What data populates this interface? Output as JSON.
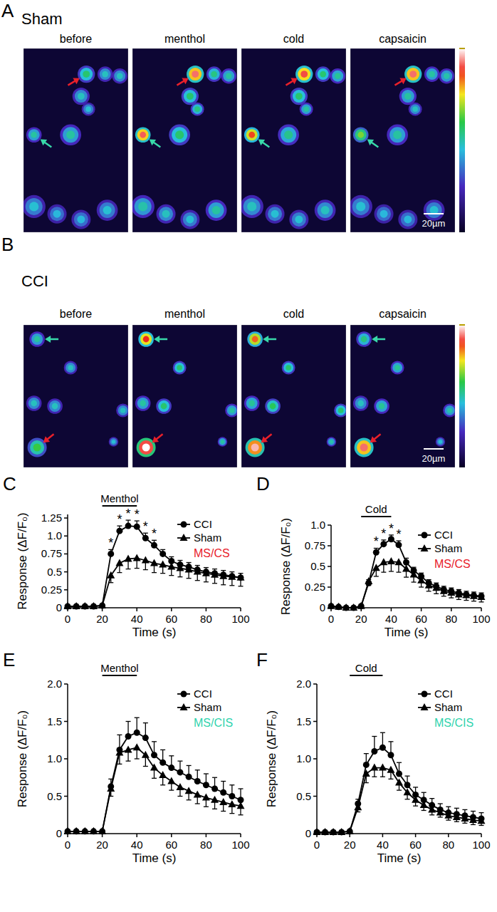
{
  "figure_panels": [
    {
      "panel_label": "A",
      "condition": "Sham",
      "frames": [
        "before",
        "menthol",
        "cold",
        "capsaicin"
      ],
      "scale_bar": "20µm"
    },
    {
      "panel_label": "B",
      "condition": "CCI",
      "frames": [
        "before",
        "menthol",
        "cold",
        "capsaicin"
      ],
      "scale_bar": "20µm"
    }
  ],
  "chart_data": [
    {
      "type": "line",
      "panel_label": "C",
      "subtitle": "MS/CS",
      "xlabel": "Time (s)",
      "ylabel": "Response (ΔF/F₀)",
      "x": [
        0,
        5,
        10,
        15,
        20,
        25,
        30,
        35,
        40,
        45,
        50,
        55,
        60,
        65,
        70,
        75,
        80,
        85,
        90,
        95,
        100
      ],
      "xlim": [
        0,
        100
      ],
      "xticks": [
        0,
        20,
        40,
        60,
        80,
        100
      ],
      "ylim": [
        0,
        1.3
      ],
      "yticks": [
        0,
        0.25,
        0.5,
        0.75,
        {
          "value": 1,
          "label": "1.0"
        },
        1.25
      ],
      "legend": "top-right",
      "series": [
        {
          "name": "CCI",
          "color": "#000000",
          "marker": "circle",
          "values": [
            0.02,
            0.02,
            0.02,
            0.02,
            0.03,
            0.75,
            1.07,
            1.14,
            1.13,
            0.97,
            0.87,
            0.75,
            0.65,
            0.6,
            0.57,
            0.53,
            0.5,
            0.48,
            0.46,
            0.44,
            0.42
          ],
          "errors": [
            0.01,
            0.01,
            0.01,
            0.01,
            0.01,
            0.06,
            0.07,
            0.08,
            0.08,
            0.07,
            0.07,
            0.06,
            0.06,
            0.06,
            0.06,
            0.06,
            0.06,
            0.06,
            0.06,
            0.06,
            0.06
          ]
        },
        {
          "name": "Sham",
          "color": "#000000",
          "marker": "triangle",
          "values": [
            0.02,
            0.02,
            0.02,
            0.02,
            0.03,
            0.45,
            0.62,
            0.68,
            0.69,
            0.66,
            0.62,
            0.6,
            0.57,
            0.55,
            0.53,
            0.5,
            0.48,
            0.46,
            0.44,
            0.43,
            0.42
          ],
          "errors": [
            0.01,
            0.01,
            0.01,
            0.01,
            0.01,
            0.1,
            0.13,
            0.14,
            0.14,
            0.13,
            0.13,
            0.12,
            0.12,
            0.12,
            0.12,
            0.12,
            0.12,
            0.12,
            0.12,
            0.12,
            0.12
          ]
        }
      ],
      "annotations": [
        {
          "text": "Menthol",
          "x": [
            20,
            40
          ]
        },
        {
          "text": "*",
          "x": 25
        },
        {
          "text": "*",
          "x": 30
        },
        {
          "text": "*",
          "x": 35
        },
        {
          "text": "*",
          "x": 40
        },
        {
          "text": "*",
          "x": 45
        },
        {
          "text": "*",
          "x": 50
        }
      ]
    },
    {
      "type": "line",
      "panel_label": "D",
      "subtitle": "MS/CS",
      "xlabel": "Time (s)",
      "ylabel": "Response (ΔF/F₀)",
      "x": [
        0,
        5,
        10,
        15,
        20,
        25,
        30,
        35,
        40,
        45,
        50,
        55,
        60,
        65,
        70,
        75,
        80,
        85,
        90,
        95,
        100
      ],
      "xlim": [
        0,
        100
      ],
      "xticks": [
        0,
        20,
        40,
        60,
        80,
        100
      ],
      "ylim": [
        0,
        1
      ],
      "yticks": [
        0,
        0.25,
        0.5,
        0.75,
        {
          "value": 1,
          "label": "1.0"
        }
      ],
      "legend": "top-right",
      "series": [
        {
          "name": "CCI",
          "color": "#000000",
          "marker": "circle",
          "values": [
            0.02,
            0.01,
            0.0,
            0.0,
            0.02,
            0.3,
            0.67,
            0.77,
            0.83,
            0.76,
            0.55,
            0.45,
            0.38,
            0.3,
            0.26,
            0.22,
            0.2,
            0.18,
            0.16,
            0.15,
            0.14
          ],
          "errors": [
            0.01,
            0.01,
            0.01,
            0.01,
            0.01,
            0.04,
            0.05,
            0.05,
            0.05,
            0.05,
            0.05,
            0.04,
            0.04,
            0.04,
            0.04,
            0.04,
            0.04,
            0.04,
            0.04,
            0.04,
            0.04
          ]
        },
        {
          "name": "Sham",
          "color": "#000000",
          "marker": "triangle",
          "values": [
            0.02,
            0.01,
            0.0,
            0.0,
            0.02,
            0.32,
            0.48,
            0.55,
            0.56,
            0.55,
            0.47,
            0.4,
            0.33,
            0.27,
            0.24,
            0.2,
            0.18,
            0.16,
            0.15,
            0.14,
            0.13
          ],
          "errors": [
            0.01,
            0.01,
            0.01,
            0.01,
            0.01,
            0.05,
            0.1,
            0.12,
            0.12,
            0.12,
            0.1,
            0.09,
            0.08,
            0.07,
            0.07,
            0.06,
            0.06,
            0.06,
            0.06,
            0.06,
            0.06
          ]
        }
      ],
      "annotations": [
        {
          "text": "Cold",
          "x": [
            20,
            40
          ]
        },
        {
          "text": "*",
          "x": 30
        },
        {
          "text": "*",
          "x": 35
        },
        {
          "text": "*",
          "x": 40
        },
        {
          "text": "*",
          "x": 45
        }
      ]
    },
    {
      "type": "line",
      "panel_label": "E",
      "subtitle": "MS/CIS",
      "xlabel": "Time (s)",
      "ylabel": "Response (ΔF/F₀)",
      "x": [
        0,
        5,
        10,
        15,
        20,
        25,
        30,
        35,
        40,
        45,
        50,
        55,
        60,
        65,
        70,
        75,
        80,
        85,
        90,
        95,
        100
      ],
      "xlim": [
        0,
        100
      ],
      "xticks": [
        0,
        20,
        40,
        60,
        80,
        100
      ],
      "ylim": [
        0,
        2
      ],
      "yticks": [
        0,
        0.5,
        {
          "value": 1,
          "label": "1.0"
        },
        1.5,
        {
          "value": 2,
          "label": "2.0"
        }
      ],
      "legend": "top-right",
      "series": [
        {
          "name": "CCI",
          "color": "#000000",
          "marker": "circle",
          "values": [
            0.03,
            0.03,
            0.03,
            0.03,
            0.03,
            0.63,
            1.12,
            1.3,
            1.35,
            1.28,
            1.05,
            0.95,
            0.88,
            0.82,
            0.76,
            0.7,
            0.65,
            0.6,
            0.55,
            0.5,
            0.45
          ],
          "errors": [
            0.02,
            0.02,
            0.02,
            0.02,
            0.02,
            0.1,
            0.2,
            0.2,
            0.2,
            0.2,
            0.18,
            0.17,
            0.16,
            0.15,
            0.15,
            0.15,
            0.15,
            0.15,
            0.15,
            0.15,
            0.15
          ]
        },
        {
          "name": "Sham",
          "color": "#000000",
          "marker": "triangle",
          "values": [
            0.03,
            0.03,
            0.03,
            0.03,
            0.03,
            0.6,
            1.08,
            1.12,
            1.15,
            1.05,
            0.88,
            0.78,
            0.7,
            0.62,
            0.57,
            0.52,
            0.48,
            0.45,
            0.42,
            0.39,
            0.37
          ],
          "errors": [
            0.02,
            0.02,
            0.02,
            0.02,
            0.02,
            0.1,
            0.15,
            0.15,
            0.15,
            0.15,
            0.14,
            0.13,
            0.12,
            0.12,
            0.12,
            0.12,
            0.12,
            0.12,
            0.12,
            0.12,
            0.12
          ]
        }
      ],
      "annotations": [
        {
          "text": "Menthol",
          "x": [
            20,
            40
          ]
        }
      ]
    },
    {
      "type": "line",
      "panel_label": "F",
      "subtitle": "MS/CIS",
      "xlabel": "Time (s)",
      "ylabel": "Response (ΔF/F₀)",
      "x": [
        0,
        5,
        10,
        15,
        20,
        25,
        30,
        35,
        40,
        45,
        50,
        55,
        60,
        65,
        70,
        75,
        80,
        85,
        90,
        95,
        100
      ],
      "xlim": [
        0,
        100
      ],
      "xticks": [
        0,
        20,
        40,
        60,
        80,
        100
      ],
      "ylim": [
        0,
        2
      ],
      "yticks": [
        0,
        0.5,
        {
          "value": 1,
          "label": "1.0"
        },
        1.5,
        {
          "value": 2,
          "label": "2.0"
        }
      ],
      "legend": "top-right",
      "series": [
        {
          "name": "CCI",
          "color": "#000000",
          "marker": "circle",
          "values": [
            0.02,
            0.02,
            0.02,
            0.02,
            0.03,
            0.4,
            0.92,
            1.1,
            1.15,
            1.05,
            0.8,
            0.65,
            0.52,
            0.45,
            0.38,
            0.32,
            0.28,
            0.26,
            0.24,
            0.22,
            0.2
          ],
          "errors": [
            0.02,
            0.02,
            0.02,
            0.02,
            0.02,
            0.06,
            0.15,
            0.2,
            0.2,
            0.18,
            0.15,
            0.12,
            0.1,
            0.1,
            0.09,
            0.08,
            0.08,
            0.08,
            0.08,
            0.08,
            0.08
          ]
        },
        {
          "name": "Sham",
          "color": "#000000",
          "marker": "triangle",
          "values": [
            0.02,
            0.02,
            0.02,
            0.02,
            0.03,
            0.35,
            0.8,
            0.88,
            0.88,
            0.85,
            0.68,
            0.55,
            0.45,
            0.38,
            0.32,
            0.28,
            0.24,
            0.22,
            0.2,
            0.18,
            0.17
          ],
          "errors": [
            0.02,
            0.02,
            0.02,
            0.02,
            0.02,
            0.06,
            0.12,
            0.12,
            0.12,
            0.12,
            0.1,
            0.09,
            0.08,
            0.07,
            0.07,
            0.06,
            0.06,
            0.06,
            0.06,
            0.06,
            0.06
          ]
        }
      ],
      "annotations": [
        {
          "text": "Cold",
          "x": [
            20,
            40
          ]
        }
      ]
    }
  ]
}
